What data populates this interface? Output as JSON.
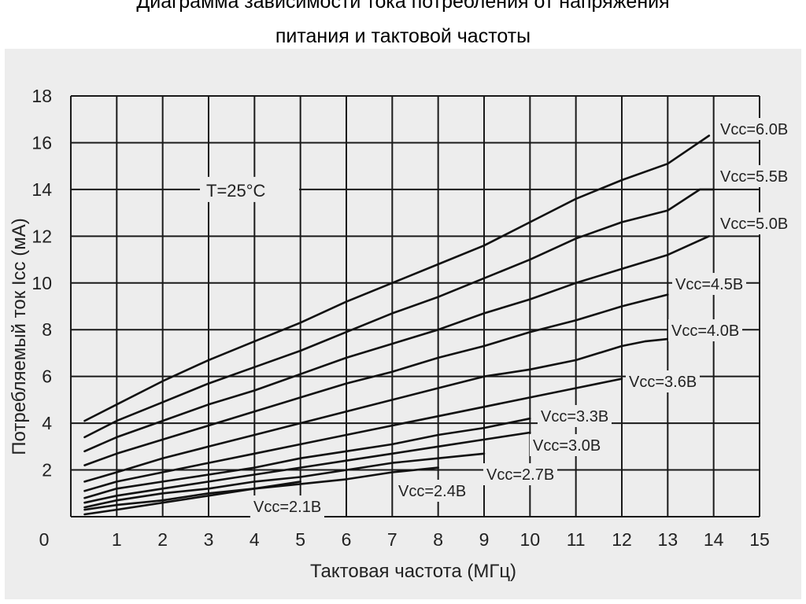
{
  "page": {
    "title_line1": "Диаграмма зависимости тока потребления от напряжения",
    "title_line2": "питания и тактовой частоты"
  },
  "chart_data": {
    "type": "line",
    "xlabel": "Тактовая частота (МГц)",
    "ylabel": "Потребляемый ток Icc (мА)",
    "xlim": [
      0,
      15
    ],
    "ylim": [
      0,
      18
    ],
    "xticks": [
      "0",
      "1",
      "2",
      "3",
      "4",
      "5",
      "6",
      "7",
      "8",
      "9",
      "10",
      "11",
      "12",
      "13",
      "14",
      "15"
    ],
    "yticks": [
      "2",
      "4",
      "6",
      "8",
      "10",
      "12",
      "14",
      "16",
      "18"
    ],
    "grid": true,
    "annotation": "T=25°C",
    "series": [
      {
        "name": "Vcc=6.0В",
        "x": [
          0.3,
          1,
          2,
          3,
          4,
          5,
          6,
          7,
          8,
          9,
          10,
          11,
          12,
          13,
          13.9
        ],
        "y": [
          4.1,
          4.8,
          5.8,
          6.7,
          7.5,
          8.3,
          9.2,
          10.0,
          10.8,
          11.6,
          12.6,
          13.6,
          14.4,
          15.1,
          16.3
        ]
      },
      {
        "name": "Vcc=5.5В",
        "x": [
          0.3,
          1,
          2,
          3,
          4,
          5,
          6,
          7,
          8,
          9,
          10,
          11,
          12,
          13,
          13.7,
          14
        ],
        "y": [
          3.4,
          4.1,
          4.9,
          5.7,
          6.4,
          7.1,
          7.9,
          8.7,
          9.4,
          10.2,
          11.0,
          11.9,
          12.6,
          13.1,
          14.0,
          14.0
        ]
      },
      {
        "name": "Vcc=5.0В",
        "x": [
          0.3,
          1,
          2,
          3,
          4,
          5,
          6,
          7,
          8,
          9,
          10,
          11,
          12,
          13,
          13.9
        ],
        "y": [
          2.8,
          3.4,
          4.1,
          4.8,
          5.4,
          6.1,
          6.8,
          7.4,
          8.0,
          8.7,
          9.3,
          10.0,
          10.6,
          11.2,
          12.0
        ]
      },
      {
        "name": "Vcc=4.5В",
        "x": [
          0.3,
          1,
          2,
          3,
          4,
          5,
          6,
          7,
          8,
          9,
          10,
          11,
          12,
          13
        ],
        "y": [
          2.2,
          2.7,
          3.3,
          3.9,
          4.5,
          5.1,
          5.7,
          6.2,
          6.8,
          7.3,
          7.9,
          8.4,
          9.0,
          9.5
        ]
      },
      {
        "name": "Vcc=4.0В",
        "x": [
          0.3,
          1,
          2,
          3,
          4,
          5,
          6,
          7,
          8,
          9,
          10,
          11,
          12,
          12.5,
          13
        ],
        "y": [
          1.5,
          1.9,
          2.5,
          3.0,
          3.5,
          4.0,
          4.5,
          5.0,
          5.5,
          6.0,
          6.3,
          6.7,
          7.3,
          7.5,
          7.6
        ]
      },
      {
        "name": "Vcc=3.6В",
        "x": [
          0.3,
          1,
          2,
          3,
          4,
          5,
          6,
          7,
          8,
          9,
          10,
          11,
          12
        ],
        "y": [
          1.1,
          1.5,
          1.9,
          2.3,
          2.7,
          3.1,
          3.5,
          3.9,
          4.3,
          4.7,
          5.1,
          5.5,
          5.9
        ]
      },
      {
        "name": "Vcc=3.3В",
        "x": [
          0.3,
          1,
          2,
          3,
          4,
          5,
          6,
          7,
          8,
          9,
          10
        ],
        "y": [
          0.8,
          1.2,
          1.5,
          1.8,
          2.1,
          2.5,
          2.8,
          3.1,
          3.5,
          3.8,
          4.2
        ]
      },
      {
        "name": "Vcc=3.0В",
        "x": [
          0.3,
          1,
          2,
          3,
          4,
          5,
          6,
          7,
          8,
          9,
          10
        ],
        "y": [
          0.6,
          0.9,
          1.2,
          1.5,
          1.8,
          2.1,
          2.4,
          2.7,
          3.0,
          3.3,
          3.6
        ]
      },
      {
        "name": "Vcc=2.7В",
        "x": [
          0.3,
          1,
          2,
          3,
          4,
          5,
          6,
          7,
          8,
          9
        ],
        "y": [
          0.4,
          0.7,
          1.0,
          1.2,
          1.5,
          1.7,
          2.0,
          2.3,
          2.5,
          2.7
        ]
      },
      {
        "name": "Vcc=2.4В",
        "x": [
          0.3,
          1,
          2,
          3,
          4,
          5,
          6,
          7,
          8
        ],
        "y": [
          0.3,
          0.5,
          0.7,
          1.0,
          1.2,
          1.4,
          1.6,
          1.9,
          2.1
        ]
      },
      {
        "name": "Vcc=2.1В",
        "x": [
          0.3,
          1,
          2,
          3,
          4,
          5
        ],
        "y": [
          0.1,
          0.3,
          0.6,
          0.9,
          1.2,
          1.5
        ]
      }
    ],
    "colors": {
      "line": "#111111",
      "grid": "#1a1a1a",
      "background": "#ededed"
    }
  }
}
